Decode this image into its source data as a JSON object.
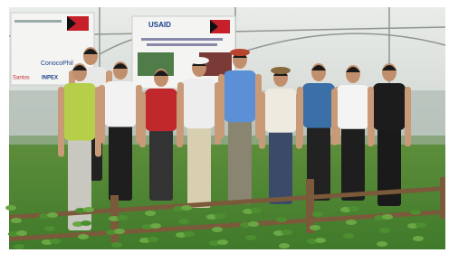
{
  "banner": {
    "logo": "USAID"
  },
  "sponsors": [
    "ConocoPhil",
    "Santos",
    "INPEX"
  ]
}
